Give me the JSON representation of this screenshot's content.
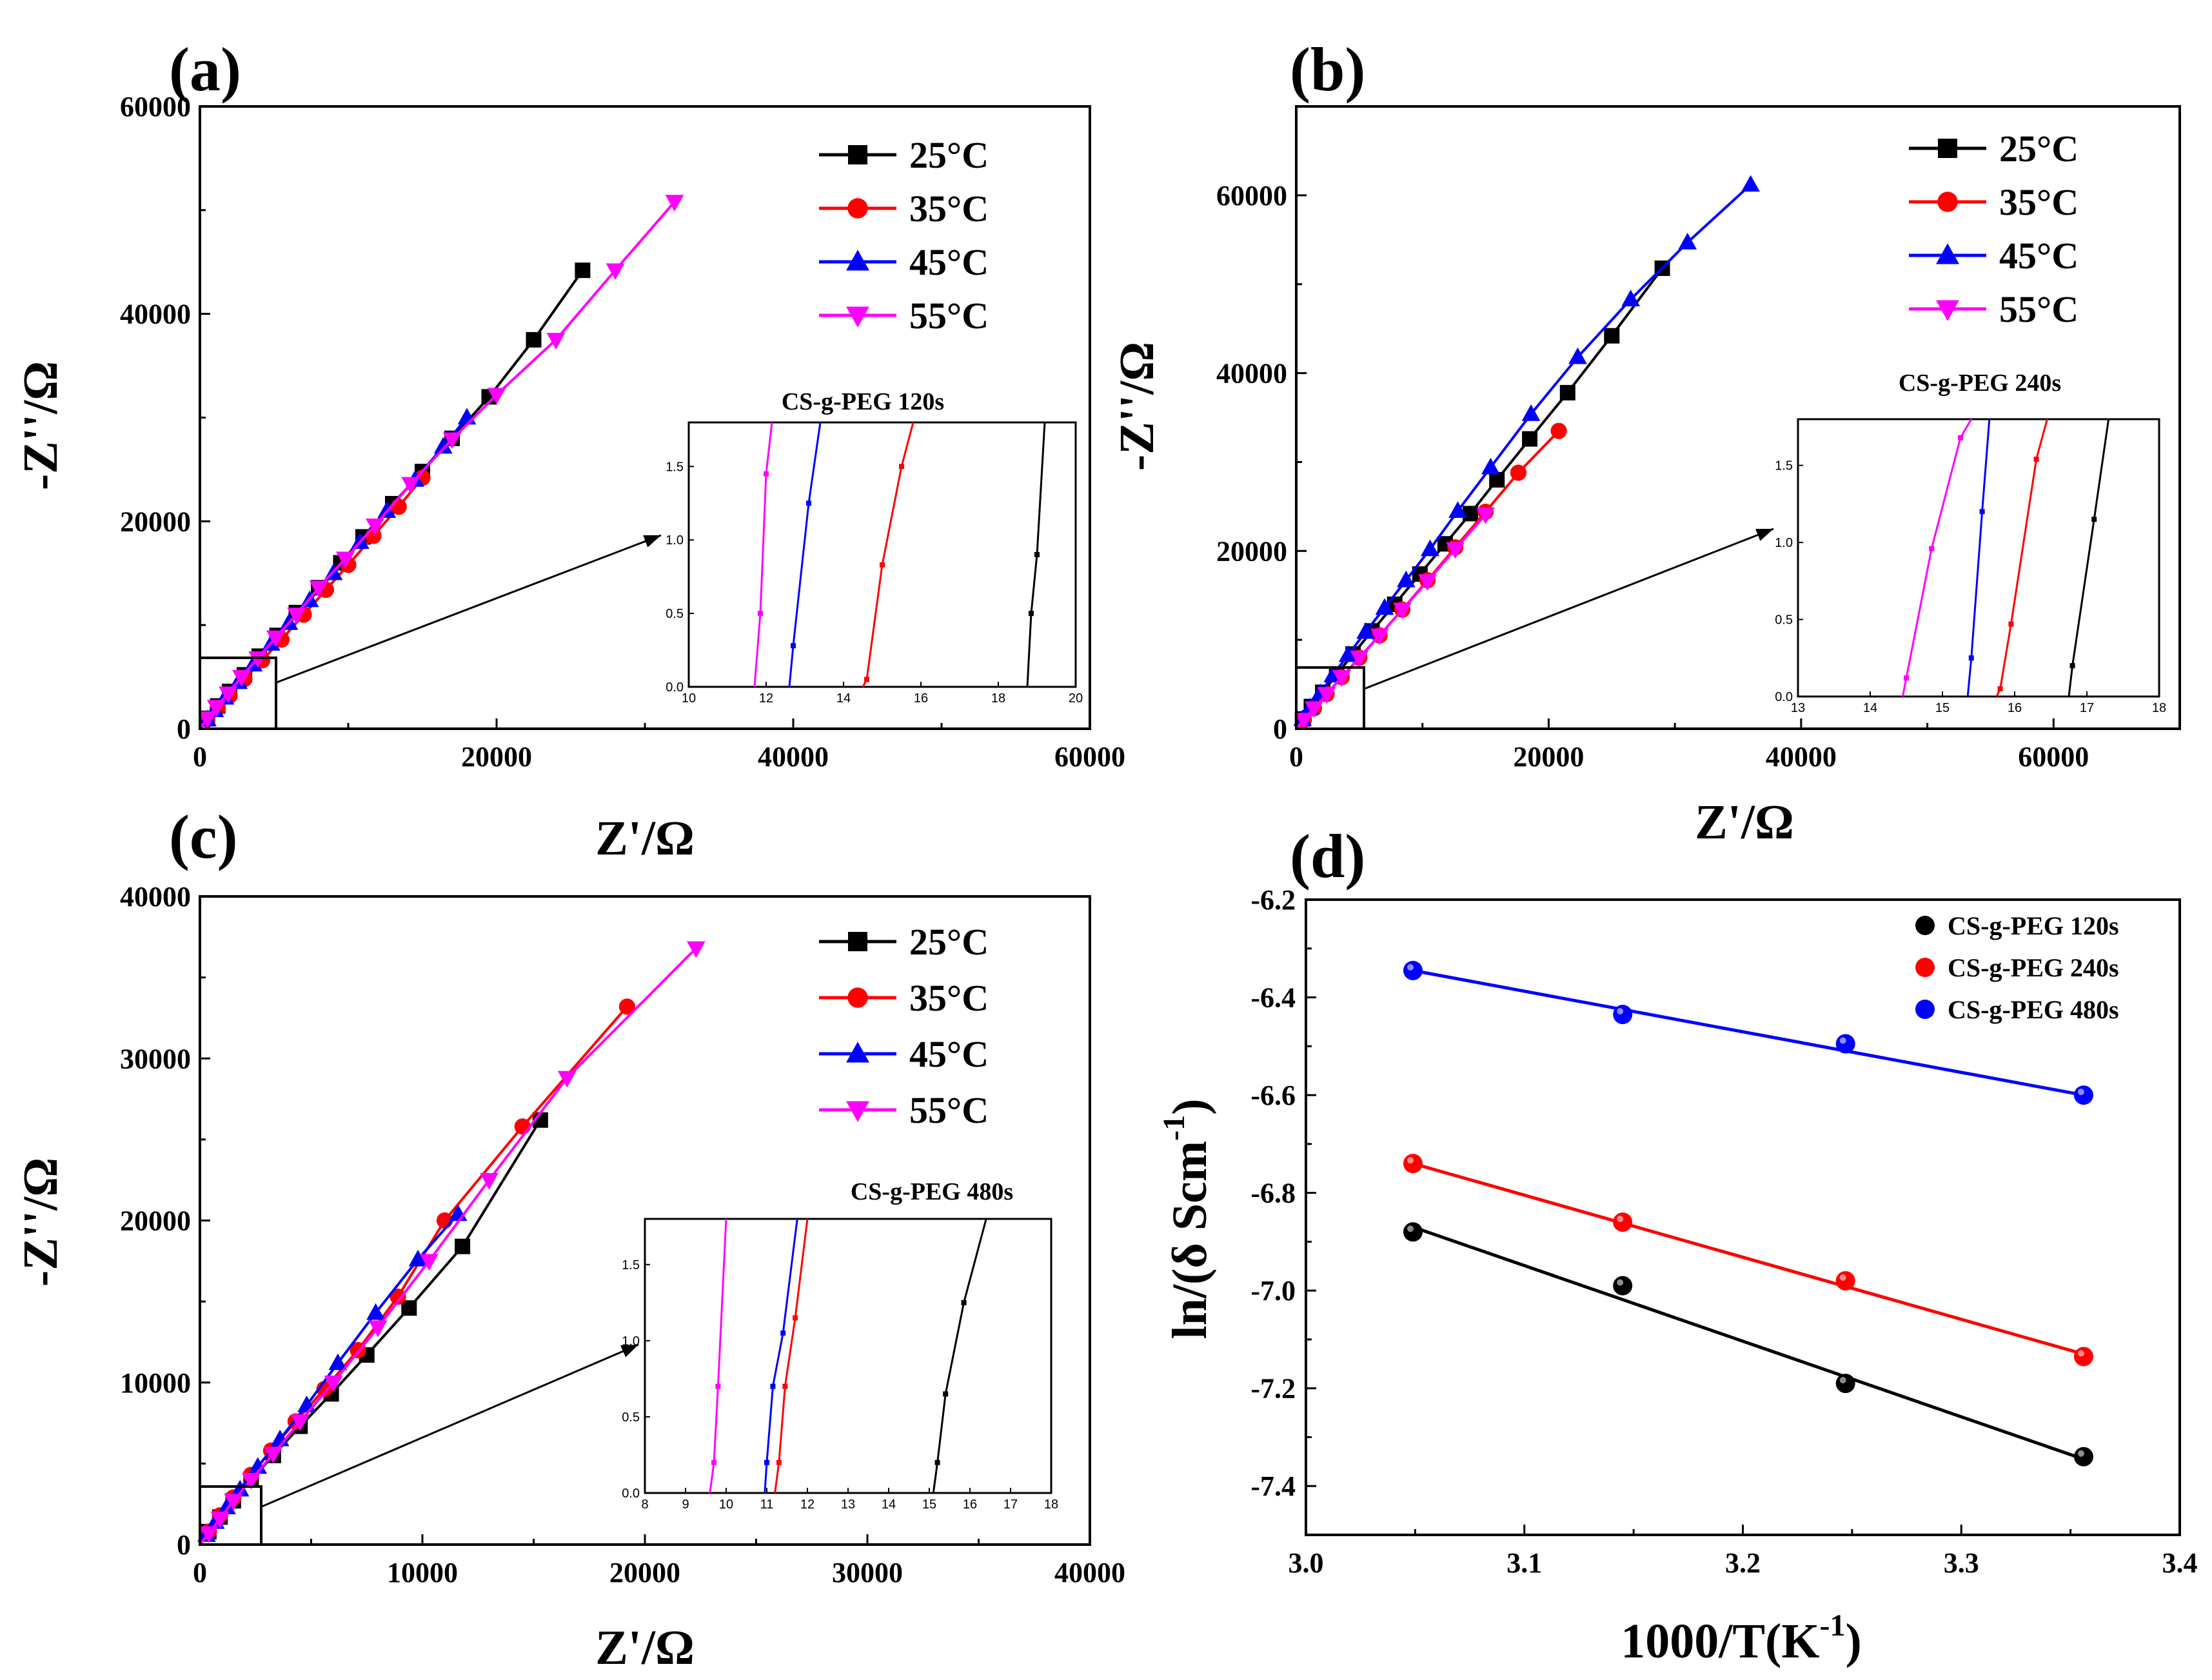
{
  "chart_data": [
    {
      "type": "line",
      "panel_label": "(a)",
      "xlabel": "Z'/Ω",
      "ylabel": "-Z''/Ω",
      "xlim": [
        0,
        60000
      ],
      "ylim": [
        0,
        60000
      ],
      "xticks": [
        0,
        20000,
        40000,
        60000
      ],
      "yticks": [
        0,
        20000,
        40000,
        60000
      ],
      "x_tick_labels": [
        "0",
        "20000",
        "40000",
        "60000"
      ],
      "y_tick_labels": [
        "0",
        "20000",
        "40000",
        "60000"
      ],
      "legend_position": "top-right",
      "series": [
        {
          "name": "25°C",
          "color": "#000000",
          "marker": "square",
          "x": [
            0,
            500,
            1200,
            2000,
            3000,
            4000,
            5200,
            6500,
            8000,
            9500,
            11000,
            13000,
            15000,
            17000,
            19500,
            22500,
            25800
          ],
          "y": [
            0,
            1000,
            2200,
            3600,
            5200,
            7000,
            9000,
            11200,
            13600,
            16000,
            18500,
            21700,
            24800,
            28000,
            32000,
            37500,
            44200
          ]
        },
        {
          "name": "35°C",
          "color": "#ff0000",
          "marker": "circle",
          "x": [
            0,
            500,
            1200,
            2000,
            3000,
            4200,
            5500,
            7000,
            8500,
            10000,
            11700,
            13400,
            15000
          ],
          "y": [
            0,
            900,
            2000,
            3200,
            4800,
            6600,
            8600,
            11000,
            13400,
            15800,
            18600,
            21400,
            24200
          ]
        },
        {
          "name": "45°C",
          "color": "#0000ff",
          "marker": "triangle-up",
          "x": [
            0,
            500,
            1000,
            1700,
            2600,
            3600,
            4800,
            6000,
            7400,
            9000,
            10800,
            12600,
            14500,
            16400,
            18000
          ],
          "y": [
            0,
            900,
            1800,
            3000,
            4500,
            6200,
            8200,
            10200,
            12400,
            15000,
            18000,
            21000,
            24000,
            27200,
            30000
          ]
        },
        {
          "name": "55°C",
          "color": "#ff00ff",
          "marker": "triangle-down",
          "x": [
            0,
            500,
            1100,
            1900,
            2800,
            3900,
            5100,
            6500,
            8000,
            9800,
            11800,
            14200,
            17000,
            20000,
            24000,
            28000,
            32000
          ],
          "y": [
            0,
            1000,
            2100,
            3400,
            5000,
            6800,
            8800,
            11000,
            13600,
            16400,
            19600,
            23600,
            27900,
            32200,
            37500,
            44200,
            50800
          ]
        }
      ],
      "inset": {
        "title": "CS-g-PEG 120s",
        "xlim": [
          10,
          20
        ],
        "ylim": [
          0,
          1.8
        ],
        "xticks": [
          10,
          12,
          14,
          16,
          18,
          20
        ],
        "yticks": [
          0.0,
          0.5,
          1.0,
          1.5
        ],
        "x_tick_labels": [
          "10",
          "12",
          "14",
          "16",
          "18",
          "20"
        ],
        "y_tick_labels": [
          "0.0",
          "0.5",
          "1.0",
          "1.5"
        ],
        "series": [
          {
            "name": "55°C",
            "color": "#ff00ff",
            "x": [
              11.7,
              11.85,
              12.0,
              12.15
            ],
            "y": [
              0.0,
              0.5,
              1.45,
              1.8
            ]
          },
          {
            "name": "45°C",
            "color": "#0000ff",
            "x": [
              12.6,
              12.7,
              13.1,
              13.4
            ],
            "y": [
              0.0,
              0.28,
              1.25,
              1.8
            ]
          },
          {
            "name": "35°C",
            "color": "#ff0000",
            "x": [
              14.5,
              14.6,
              15.0,
              15.5,
              15.8
            ],
            "y": [
              0.0,
              0.05,
              0.83,
              1.5,
              1.8
            ]
          },
          {
            "name": "25°C",
            "color": "#000000",
            "x": [
              18.75,
              18.85,
              19.0,
              19.2
            ],
            "y": [
              0.0,
              0.5,
              0.9,
              1.8
            ]
          }
        ]
      }
    },
    {
      "type": "line",
      "panel_label": "(b)",
      "xlabel": "Z'/Ω",
      "ylabel": "-Z''/Ω",
      "xlim": [
        0,
        70000
      ],
      "ylim": [
        0,
        70000
      ],
      "xticks": [
        0,
        20000,
        40000,
        60000
      ],
      "yticks": [
        0,
        20000,
        40000,
        60000
      ],
      "x_tick_labels": [
        "0",
        "20000",
        "40000",
        "60000"
      ],
      "y_tick_labels": [
        "0",
        "20000",
        "40000",
        "60000"
      ],
      "legend_position": "top-right",
      "series": [
        {
          "name": "25°C",
          "color": "#000000",
          "marker": "square",
          "x": [
            0,
            500,
            1200,
            2100,
            3200,
            4500,
            6000,
            7800,
            9800,
            11800,
            13800,
            15900,
            18500,
            21500,
            25000,
            29000
          ],
          "y": [
            0,
            1100,
            2500,
            4100,
            6100,
            8400,
            11000,
            14000,
            17400,
            20800,
            24200,
            28000,
            32600,
            37800,
            44200,
            51800
          ]
        },
        {
          "name": "35°C",
          "color": "#ff0000",
          "marker": "circle",
          "x": [
            0,
            600,
            1400,
            2400,
            3600,
            5000,
            6600,
            8400,
            10400,
            12600,
            15000,
            17600,
            20800
          ],
          "y": [
            0,
            1000,
            2300,
            3900,
            5800,
            8000,
            10500,
            13400,
            16700,
            20400,
            24400,
            28800,
            33500
          ]
        },
        {
          "name": "45°C",
          "color": "#0000ff",
          "marker": "triangle-up",
          "x": [
            0,
            500,
            1100,
            1900,
            2900,
            4100,
            5500,
            7000,
            8700,
            10600,
            12800,
            15400,
            18600,
            22300,
            26500,
            31000,
            36000
          ],
          "y": [
            0,
            1100,
            2400,
            4000,
            6000,
            8300,
            10900,
            13600,
            16700,
            20200,
            24500,
            29400,
            35400,
            41800,
            48300,
            54700,
            61200
          ]
        },
        {
          "name": "55°C",
          "color": "#ff00ff",
          "marker": "triangle-down",
          "x": [
            0,
            600,
            1400,
            2400,
            3600,
            5000,
            6600,
            8400,
            10400,
            12600,
            15000
          ],
          "y": [
            0,
            1000,
            2300,
            3900,
            5800,
            8000,
            10500,
            13400,
            16600,
            20200,
            24100
          ]
        }
      ],
      "inset": {
        "title": "CS-g-PEG 240s",
        "xlim": [
          13,
          18
        ],
        "ylim": [
          0,
          1.8
        ],
        "xticks": [
          13,
          14,
          15,
          16,
          17,
          18
        ],
        "yticks": [
          0.0,
          0.5,
          1.0,
          1.5
        ],
        "x_tick_labels": [
          "13",
          "14",
          "15",
          "16",
          "17",
          "18"
        ],
        "y_tick_labels": [
          "0.0",
          "0.5",
          "1.0",
          "1.5"
        ],
        "series": [
          {
            "name": "55°C",
            "color": "#ff00ff",
            "x": [
              14.45,
              14.5,
              14.85,
              15.25,
              15.4
            ],
            "y": [
              0.0,
              0.12,
              0.96,
              1.68,
              1.8
            ]
          },
          {
            "name": "45°C",
            "color": "#0000ff",
            "x": [
              15.35,
              15.4,
              15.55,
              15.65
            ],
            "y": [
              0.0,
              0.25,
              1.2,
              1.8
            ]
          },
          {
            "name": "35°C",
            "color": "#ff0000",
            "x": [
              15.75,
              15.8,
              15.95,
              16.3,
              16.45
            ],
            "y": [
              0.0,
              0.05,
              0.47,
              1.54,
              1.8
            ]
          },
          {
            "name": "25°C",
            "color": "#000000",
            "x": [
              16.75,
              16.8,
              17.1,
              17.3
            ],
            "y": [
              0.0,
              0.2,
              1.15,
              1.8
            ]
          }
        ]
      }
    },
    {
      "type": "line",
      "panel_label": "(c)",
      "xlabel": "Z'/Ω",
      "ylabel": "-Z''/Ω",
      "xlim": [
        0,
        40000
      ],
      "ylim": [
        0,
        40000
      ],
      "xticks": [
        0,
        10000,
        20000,
        30000,
        40000
      ],
      "yticks": [
        0,
        10000,
        20000,
        30000,
        40000
      ],
      "x_tick_labels": [
        "0",
        "10000",
        "20000",
        "30000",
        "40000"
      ],
      "y_tick_labels": [
        "0",
        "10000",
        "20000",
        "30000",
        "40000"
      ],
      "legend_position": "top-right",
      "series": [
        {
          "name": "25°C",
          "color": "#000000",
          "marker": "square",
          "x": [
            0,
            400,
            900,
            1500,
            2300,
            3300,
            4500,
            5900,
            7500,
            9400,
            11800,
            15300
          ],
          "y": [
            0,
            800,
            1700,
            2700,
            4000,
            5500,
            7300,
            9300,
            11700,
            14600,
            18400,
            26200
          ]
        },
        {
          "name": "35°C",
          "color": "#ff0000",
          "marker": "circle",
          "x": [
            0,
            400,
            900,
            1500,
            2300,
            3200,
            4300,
            5600,
            7100,
            8900,
            11000,
            14500,
            19200
          ],
          "y": [
            0,
            800,
            1800,
            2900,
            4300,
            5800,
            7600,
            9600,
            12000,
            15300,
            20000,
            25800,
            33200
          ]
        },
        {
          "name": "45°C",
          "color": "#0000ff",
          "marker": "triangle-up",
          "x": [
            0,
            300,
            700,
            1200,
            1800,
            2600,
            3600,
            4800,
            6200,
            7900,
            9800,
            11600
          ],
          "y": [
            0,
            600,
            1400,
            2300,
            3400,
            4800,
            6500,
            8600,
            11200,
            14300,
            17600,
            20400
          ]
        },
        {
          "name": "55°C",
          "color": "#ff00ff",
          "marker": "triangle-down",
          "x": [
            0,
            400,
            900,
            1500,
            2300,
            3300,
            4500,
            6000,
            8000,
            10300,
            13000,
            16500,
            22300
          ],
          "y": [
            0,
            700,
            1600,
            2700,
            4000,
            5600,
            7600,
            10000,
            13400,
            17500,
            22500,
            28800,
            36800
          ]
        }
      ],
      "inset": {
        "title": "CS-g-PEG 480s",
        "xlim": [
          8,
          18
        ],
        "ylim": [
          0,
          1.8
        ],
        "xticks": [
          8,
          9,
          10,
          11,
          12,
          13,
          14,
          15,
          16,
          17,
          18
        ],
        "yticks": [
          0.0,
          0.5,
          1.0,
          1.5
        ],
        "x_tick_labels": [
          "8",
          "9",
          "10",
          "11",
          "12",
          "13",
          "14",
          "15",
          "16",
          "17",
          "18"
        ],
        "y_tick_labels": [
          "0.0",
          "0.5",
          "1.0",
          "1.5"
        ],
        "series": [
          {
            "name": "55°C",
            "color": "#ff00ff",
            "x": [
              9.6,
              9.7,
              9.8,
              10.0
            ],
            "y": [
              0.0,
              0.2,
              0.7,
              1.8
            ]
          },
          {
            "name": "45°C",
            "color": "#0000ff",
            "x": [
              10.95,
              11.0,
              11.15,
              11.4,
              11.75
            ],
            "y": [
              0.0,
              0.2,
              0.7,
              1.05,
              1.8
            ]
          },
          {
            "name": "35°C",
            "color": "#ff0000",
            "x": [
              11.2,
              11.3,
              11.45,
              11.7,
              12.0
            ],
            "y": [
              0.0,
              0.2,
              0.7,
              1.15,
              1.8
            ]
          },
          {
            "name": "25°C",
            "color": "#000000",
            "x": [
              15.1,
              15.2,
              15.4,
              15.85,
              16.4
            ],
            "y": [
              0.0,
              0.2,
              0.65,
              1.25,
              1.8
            ]
          }
        ]
      }
    },
    {
      "type": "scatter",
      "panel_label": "(d)",
      "xlabel": "1000/T(K",
      "xlabel_sup": "-1",
      "xlabel_tail": ")",
      "ylabel": "ln/(δ Scm",
      "ylabel_sup": "-1",
      "ylabel_tail": ")",
      "xlim": [
        3.0,
        3.4
      ],
      "ylim": [
        -7.5,
        -6.2
      ],
      "xticks": [
        3.0,
        3.1,
        3.2,
        3.3,
        3.4
      ],
      "yticks": [
        -7.4,
        -7.2,
        -7.0,
        -6.8,
        -6.6,
        -6.4,
        -6.2
      ],
      "x_tick_labels": [
        "3.0",
        "3.1",
        "3.2",
        "3.3",
        "3.4"
      ],
      "y_tick_labels": [
        "-7.4",
        "-7.2",
        "-7.0",
        "-6.8",
        "-6.6",
        "-6.4",
        "-6.2"
      ],
      "legend_position": "top-right",
      "series": [
        {
          "name": "CS-g-PEG 120s",
          "color": "#000000",
          "x": [
            3.049,
            3.145,
            3.247,
            3.356
          ],
          "y": [
            -6.88,
            -6.99,
            -7.19,
            -7.34
          ],
          "fit": [
            -6.87,
            -7.345
          ]
        },
        {
          "name": "CS-g-PEG 240s",
          "color": "#ff0000",
          "x": [
            3.049,
            3.145,
            3.247,
            3.356
          ],
          "y": [
            -6.74,
            -6.86,
            -6.98,
            -7.135
          ],
          "fit": [
            -6.74,
            -7.13
          ]
        },
        {
          "name": "CS-g-PEG 480s",
          "color": "#0000ff",
          "x": [
            3.049,
            3.145,
            3.247,
            3.356
          ],
          "y": [
            -6.345,
            -6.435,
            -6.495,
            -6.6
          ],
          "fit": [
            -6.345,
            -6.6
          ]
        }
      ]
    }
  ]
}
